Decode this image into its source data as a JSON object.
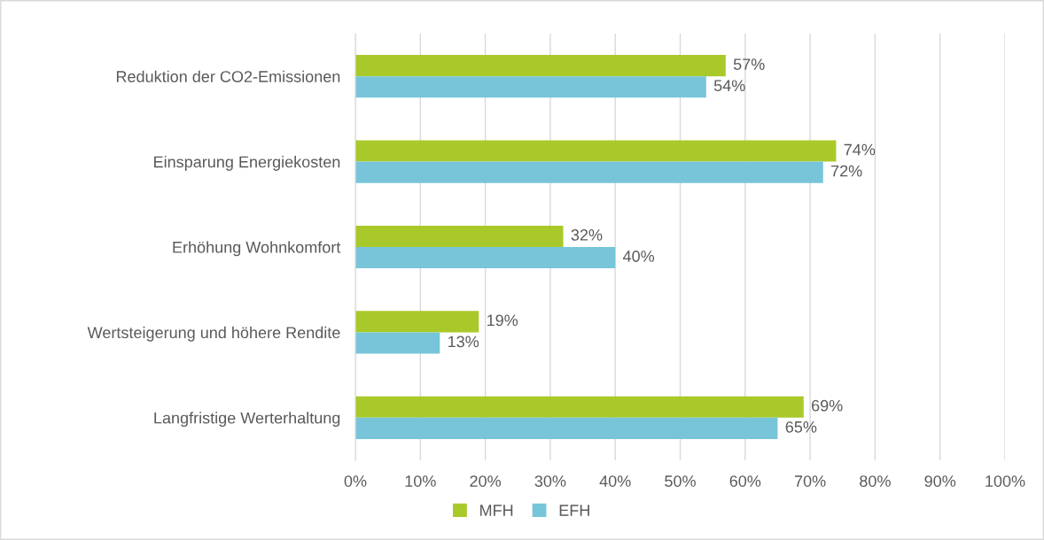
{
  "chart_data": {
    "type": "bar",
    "orientation": "horizontal",
    "categories": [
      "Reduktion der CO2-Emissionen",
      "Einsparung Energiekosten",
      "Erhöhung Wohnkomfort",
      "Wertsteigerung und höhere Rendite",
      "Langfristige Werterhaltung"
    ],
    "series": [
      {
        "name": "MFH",
        "color": "#a9c92b",
        "values": [
          57,
          74,
          32,
          19,
          69
        ],
        "value_labels": [
          "57%",
          "74%",
          "32%",
          "19%",
          "69%"
        ]
      },
      {
        "name": "EFH",
        "color": "#78c5d9",
        "values": [
          54,
          72,
          40,
          13,
          65
        ],
        "value_labels": [
          "54%",
          "72%",
          "40%",
          "13%",
          "65%"
        ]
      }
    ],
    "xlim": [
      0,
      100
    ],
    "xticks": [
      {
        "value": 0,
        "label": "0%"
      },
      {
        "value": 10,
        "label": "10%"
      },
      {
        "value": 20,
        "label": "20%"
      },
      {
        "value": 30,
        "label": "30%"
      },
      {
        "value": 40,
        "label": "40%"
      },
      {
        "value": 50,
        "label": "50%"
      },
      {
        "value": 60,
        "label": "60%"
      },
      {
        "value": 70,
        "label": "70%"
      },
      {
        "value": 80,
        "label": "80%"
      },
      {
        "value": 90,
        "label": "90%"
      },
      {
        "value": 100,
        "label": "100%"
      }
    ],
    "grid": "x",
    "legend": "bottom"
  }
}
